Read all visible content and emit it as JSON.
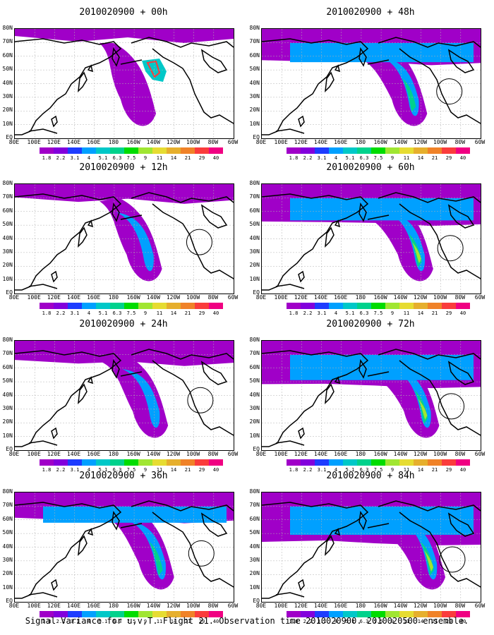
{
  "caption": "Signal Variance for u,v,T. Flight 21. Observation time 2010020900. 2010020500 ensemble.",
  "panels": [
    {
      "title": "2010020900 + 00h",
      "lead": 0
    },
    {
      "title": "2010020900 + 48h",
      "lead": 48
    },
    {
      "title": "2010020900 + 12h",
      "lead": 12
    },
    {
      "title": "2010020900 + 60h",
      "lead": 60
    },
    {
      "title": "2010020900 + 24h",
      "lead": 24
    },
    {
      "title": "2010020900 + 72h",
      "lead": 72
    },
    {
      "title": "2010020900 + 36h",
      "lead": 36
    },
    {
      "title": "2010020900 + 84h",
      "lead": 84
    }
  ],
  "lat_labels": [
    "80N",
    "70N",
    "60N",
    "50N",
    "40N",
    "30N",
    "20N",
    "10N",
    "EQ"
  ],
  "lon_labels": [
    "80E",
    "100E",
    "120E",
    "140E",
    "160E",
    "180",
    "160W",
    "140W",
    "120W",
    "100W",
    "80W",
    "60W"
  ],
  "colorbar": {
    "labels": [
      "1.8",
      "2.2",
      "3.1",
      "4",
      "5.1",
      "6.3",
      "7.5",
      "9",
      "11",
      "14",
      "21",
      "29",
      "40"
    ],
    "colors": [
      "#a000c8",
      "#8200dc",
      "#1e3cff",
      "#00a0ff",
      "#00c8c8",
      "#00d28c",
      "#00dc00",
      "#a0e632",
      "#e6dc32",
      "#e6af2d",
      "#f08228",
      "#fa3c3c",
      "#f00082"
    ]
  }
}
